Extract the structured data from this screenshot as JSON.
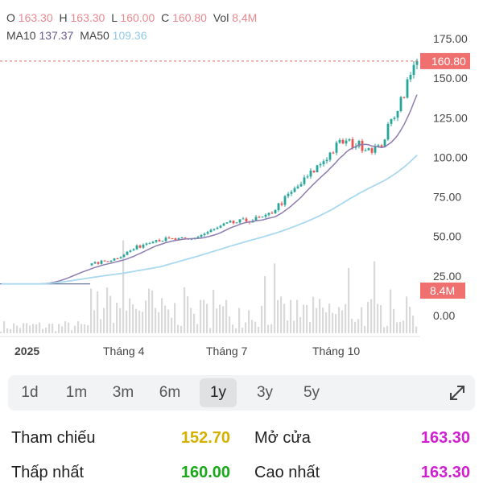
{
  "ohlc": {
    "o_label": "O",
    "o": "163.30",
    "h_label": "H",
    "h": "163.30",
    "l_label": "L",
    "l": "160.00",
    "c_label": "C",
    "c": "160.80",
    "vol_label": "Vol",
    "vol": "8,4M"
  },
  "ma": {
    "ma10_label": "MA10",
    "ma10": "137.37",
    "ma50_label": "MA50",
    "ma50": "109.36"
  },
  "price_axis": [
    "175.00",
    "150.00",
    "125.00",
    "100.00",
    "75.00",
    "50.00",
    "25.00",
    "0.00"
  ],
  "last_price_tag": "160.80",
  "volume_tag": "8.4M",
  "time_axis": [
    "2025",
    "Tháng 4",
    "Tháng 7",
    "Tháng 10"
  ],
  "timeframes": [
    "1d",
    "1m",
    "3m",
    "6m",
    "1y",
    "3y",
    "5y"
  ],
  "active_timeframe": "1y",
  "stats": {
    "ref_label": "Tham chiếu",
    "ref_value": "152.70",
    "open_label": "Mở cửa",
    "open_value": "163.30",
    "low_label": "Thấp nhất",
    "low_value": "160.00",
    "high_label": "Cao nhất",
    "high_value": "163.30"
  },
  "colors": {
    "up": "#26a69a",
    "down": "#ef5350",
    "ma10": "#8e7cb0",
    "ma50": "#a9d8ef",
    "volume": "#d9d9d9",
    "ref": "#d4b000",
    "low": "#17a917",
    "open_high": "#d01fd0"
  },
  "chart_data": {
    "type": "candlestick",
    "y_range": [
      0,
      175
    ],
    "last_price": 160.8,
    "closes_monthly": [
      {
        "month": "2025-01",
        "close": 20
      },
      {
        "month": "2025-02",
        "close": 20
      },
      {
        "month": "2025-03",
        "close": 30
      },
      {
        "month": "2025-04",
        "close": 36
      },
      {
        "month": "2025-05",
        "close": 48
      },
      {
        "month": "2025-06",
        "close": 48
      },
      {
        "month": "2025-07",
        "close": 58
      },
      {
        "month": "2025-08",
        "close": 62
      },
      {
        "month": "2025-09",
        "close": 85
      },
      {
        "month": "2025-10",
        "close": 110
      },
      {
        "month": "2025-11",
        "close": 105
      },
      {
        "month": "2025-12",
        "close": 160.8
      }
    ]
  }
}
